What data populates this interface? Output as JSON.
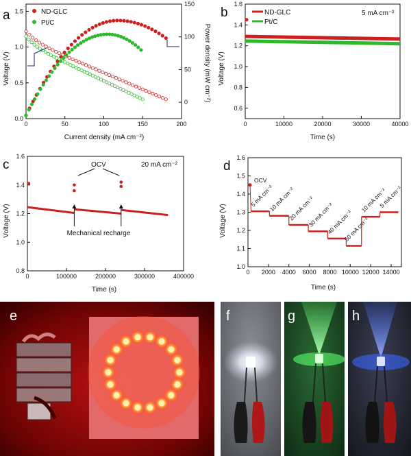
{
  "colors": {
    "red": "#cc1f1f",
    "green": "#2db82d",
    "axis": "#111111"
  },
  "chart_data": [
    {
      "id": "a",
      "panel_label": "a",
      "type": "scatter",
      "xlabel": "Current density (mA cm⁻²)",
      "ylabel": "Voltage (V)",
      "y2label": "Power density (mW cm⁻²)",
      "xlim": [
        0,
        200
      ],
      "ylim": [
        0,
        1.6
      ],
      "y2lim": [
        -25,
        150
      ],
      "xticks": [
        "0",
        "50",
        "100",
        "150",
        "200"
      ],
      "yticks": [
        "0.0",
        "0.5",
        "1.0",
        "1.5"
      ],
      "y2ticks": [
        "0",
        "50",
        "100",
        "150"
      ],
      "legend": [
        {
          "name": "ND-GLC",
          "color": "#cc1f1f"
        },
        {
          "name": "Pt/C",
          "color": "#2db82d"
        }
      ],
      "series": [
        {
          "name": "ND-GLC voltage",
          "color": "#cc1f1f",
          "filled": false,
          "axis": "left",
          "xmax": 180,
          "kind": "vol",
          "v0": 1.22,
          "vend": 0.27
        },
        {
          "name": "Pt/C voltage",
          "color": "#2db82d",
          "filled": false,
          "axis": "left",
          "xmax": 150,
          "kind": "vol",
          "v0": 1.15,
          "vend": 0.27
        },
        {
          "name": "ND-GLC power",
          "color": "#cc1f1f",
          "filled": true,
          "axis": "right",
          "xmax": 180,
          "kind": "pow",
          "peak_x": 118,
          "peak_y": 125,
          "end_y": 98
        },
        {
          "name": "Pt/C power",
          "color": "#2db82d",
          "filled": true,
          "axis": "right",
          "xmax": 148,
          "kind": "pow",
          "peak_x": 105,
          "peak_y": 104,
          "end_y": 80
        }
      ]
    },
    {
      "id": "b",
      "panel_label": "b",
      "type": "line",
      "xlabel": "Time (s)",
      "ylabel": "Voltage (V)",
      "xlim": [
        0,
        40000
      ],
      "ylim": [
        0.5,
        1.6
      ],
      "xticks": [
        "0",
        "10000",
        "20000",
        "30000",
        "40000"
      ],
      "yticks": [
        "0.6",
        "0.8",
        "1.0",
        "1.2",
        "1.4",
        "1.6"
      ],
      "annotation": "5 mA cm⁻²",
      "legend": [
        {
          "name": "ND-GLC",
          "color": "#cc1f1f"
        },
        {
          "name": "Pt/C",
          "color": "#2db82d"
        }
      ],
      "series": [
        {
          "name": "ND-GLC",
          "color": "#cc1f1f",
          "x": [
            0,
            40000
          ],
          "y": [
            1.29,
            1.265
          ]
        },
        {
          "name": "Pt/C",
          "color": "#2db82d",
          "x": [
            0,
            40000
          ],
          "y": [
            1.245,
            1.22
          ]
        }
      ]
    },
    {
      "id": "c",
      "panel_label": "c",
      "type": "line",
      "xlabel": "Time (s)",
      "ylabel": "Voltage (V)",
      "xlim": [
        0,
        400000
      ],
      "ylim": [
        0.8,
        1.6
      ],
      "xticks": [
        "0",
        "100000",
        "200000",
        "300000",
        "400000"
      ],
      "yticks": [
        "0.8",
        "1.0",
        "1.2",
        "1.4",
        "1.6"
      ],
      "annotation": "20 mA cm⁻²",
      "ocv_label": "OCV",
      "recharge_label": "Mechanical recharge",
      "segments": [
        {
          "x": [
            0,
            120000
          ],
          "y": [
            1.245,
            1.205
          ]
        },
        {
          "x": [
            121000,
            240000
          ],
          "y": [
            1.23,
            1.2
          ]
        },
        {
          "x": [
            241000,
            360000
          ],
          "y": [
            1.225,
            1.19
          ]
        }
      ],
      "ocv_points": [
        {
          "x": 0,
          "y": 1.41
        },
        {
          "x": 120000,
          "y": 1.4
        },
        {
          "x": 120000,
          "y": 1.36
        },
        {
          "x": 240000,
          "y": 1.42
        },
        {
          "x": 240000,
          "y": 1.39
        }
      ],
      "recharge_x": [
        120000,
        240000
      ]
    },
    {
      "id": "d",
      "panel_label": "d",
      "type": "line",
      "xlabel": "Time (s)",
      "ylabel": "Voltage (V)",
      "xlim": [
        0,
        15000
      ],
      "ylim": [
        1.0,
        1.6
      ],
      "xticks": [
        "0",
        "2000",
        "4000",
        "6000",
        "8000",
        "10000",
        "12000",
        "14000"
      ],
      "yticks": [
        "1.0",
        "1.1",
        "1.2",
        "1.3",
        "1.4",
        "1.5",
        "1.6"
      ],
      "ocv_label": "OCV",
      "ocv_point": {
        "x": 200,
        "y": 1.45
      },
      "steps": [
        {
          "label": "5 mA cm⁻²",
          "x0": 300,
          "x1": 2100,
          "y": 1.305
        },
        {
          "label": "10 mA cm⁻²",
          "x0": 2100,
          "x1": 4000,
          "y": 1.28
        },
        {
          "label": "20 mA cm⁻²",
          "x0": 4000,
          "x1": 5900,
          "y": 1.23
        },
        {
          "label": "30 mA cm⁻²",
          "x0": 5900,
          "x1": 7800,
          "y": 1.195
        },
        {
          "label": "40 mA cm⁻²",
          "x0": 7800,
          "x1": 9600,
          "y": 1.155
        },
        {
          "label": "50 mA cm⁻²",
          "x0": 9600,
          "x1": 11100,
          "y": 1.115
        },
        {
          "label": "10 mA cm⁻²",
          "x0": 11100,
          "x1": 12900,
          "y": 1.275
        },
        {
          "label": "5 mA cm⁻²",
          "x0": 12900,
          "x1": 14700,
          "y": 1.3
        }
      ]
    }
  ],
  "photos": {
    "e": {
      "label": "e",
      "led_color": "#ff6a2a"
    },
    "f": {
      "label": "f",
      "led_color": "#f4f6ff"
    },
    "g": {
      "label": "g",
      "led_color": "#5cff6a"
    },
    "h": {
      "label": "h",
      "led_color": "#3a66ff"
    }
  }
}
